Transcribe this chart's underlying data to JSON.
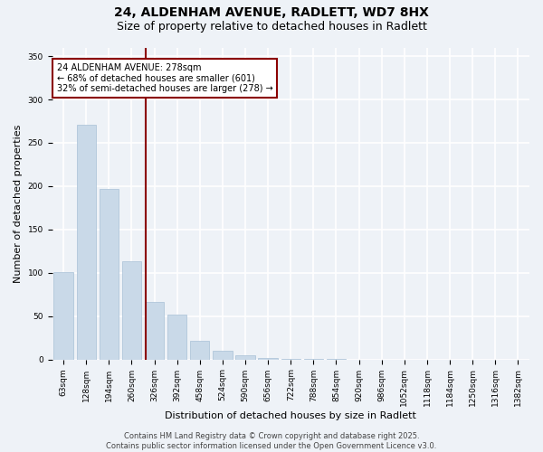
{
  "title": "24, ALDENHAM AVENUE, RADLETT, WD7 8HX",
  "subtitle": "Size of property relative to detached houses in Radlett",
  "xlabel": "Distribution of detached houses by size in Radlett",
  "ylabel": "Number of detached properties",
  "categories": [
    "63sqm",
    "128sqm",
    "194sqm",
    "260sqm",
    "326sqm",
    "392sqm",
    "458sqm",
    "524sqm",
    "590sqm",
    "656sqm",
    "722sqm",
    "788sqm",
    "854sqm",
    "920sqm",
    "986sqm",
    "1052sqm",
    "1118sqm",
    "1184sqm",
    "1250sqm",
    "1316sqm",
    "1382sqm"
  ],
  "values": [
    101,
    271,
    197,
    113,
    66,
    52,
    21,
    10,
    5,
    2,
    1,
    1,
    1,
    0,
    0,
    0,
    0,
    0,
    0,
    0,
    0
  ],
  "bar_color": "#c9d9e8",
  "bar_edge_color": "#a8c0d6",
  "annotation_box_text_line1": "24 ALDENHAM AVENUE: 278sqm",
  "annotation_box_text_line2": "← 68% of detached houses are smaller (601)",
  "annotation_box_text_line3": "32% of semi-detached houses are larger (278) →",
  "annotation_line_color": "#8b0000",
  "annotation_box_edge_color": "#8b0000",
  "vline_position": 3.62,
  "ylim": [
    0,
    360
  ],
  "yticks": [
    0,
    50,
    100,
    150,
    200,
    250,
    300,
    350
  ],
  "footer": "Contains HM Land Registry data © Crown copyright and database right 2025.\nContains public sector information licensed under the Open Government Licence v3.0.",
  "background_color": "#eef2f7",
  "grid_color": "#ffffff",
  "title_fontsize": 10,
  "subtitle_fontsize": 9,
  "ylabel_fontsize": 8,
  "xlabel_fontsize": 8,
  "tick_fontsize": 6.5,
  "annotation_fontsize": 7,
  "footer_fontsize": 6
}
